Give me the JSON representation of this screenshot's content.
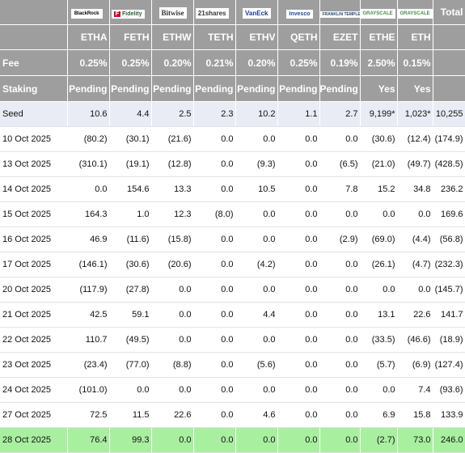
{
  "issuer_logos": [
    {
      "name": "blackrock-logo",
      "text": "BlackRock"
    },
    {
      "name": "fidelity-logo",
      "text": "Fidelity"
    },
    {
      "name": "bitwise-logo",
      "text": "Bitwise"
    },
    {
      "name": "21shares-logo",
      "text": "21shares"
    },
    {
      "name": "vaneck-logo",
      "text": "VanEck"
    },
    {
      "name": "invesco-logo",
      "text": "Invesco"
    },
    {
      "name": "franklin-logo",
      "text": "FRANKLIN TEMPLETON"
    },
    {
      "name": "grayscale-logo",
      "text": "GRAYSCALE"
    },
    {
      "name": "grayscale-logo-2",
      "text": "GRAYSCALE"
    }
  ],
  "total_label": "Total",
  "tickers": [
    "ETHA",
    "FETH",
    "ETHW",
    "TETH",
    "ETHV",
    "QETH",
    "EZET",
    "ETHE",
    "ETH"
  ],
  "fee_label": "Fee",
  "fees": [
    "0.25%",
    "0.25%",
    "0.20%",
    "0.21%",
    "0.20%",
    "0.25%",
    "0.19%",
    "2.50%",
    "0.15%"
  ],
  "staking_label": "Staking",
  "staking": [
    "Pending",
    "Pending",
    "Pending",
    "Pending",
    "Pending",
    "Pending",
    "Pending",
    "Yes",
    "Yes"
  ],
  "rows": [
    {
      "date": "Seed",
      "values": [
        "10.6",
        "4.4",
        "2.5",
        "2.3",
        "10.2",
        "1.1",
        "2.7",
        "9,199*",
        "1,023*",
        "10,255"
      ]
    },
    {
      "date": "10 Oct 2025",
      "values": [
        "(80.2)",
        "(30.1)",
        "(21.6)",
        "0.0",
        "0.0",
        "0.0",
        "0.0",
        "(30.6)",
        "(12.4)",
        "(174.9)"
      ]
    },
    {
      "date": "13 Oct 2025",
      "values": [
        "(310.1)",
        "(19.1)",
        "(12.8)",
        "0.0",
        "(9.3)",
        "0.0",
        "(6.5)",
        "(21.0)",
        "(49.7)",
        "(428.5)"
      ]
    },
    {
      "date": "14 Oct 2025",
      "values": [
        "0.0",
        "154.6",
        "13.3",
        "0.0",
        "10.5",
        "0.0",
        "7.8",
        "15.2",
        "34.8",
        "236.2"
      ]
    },
    {
      "date": "15 Oct 2025",
      "values": [
        "164.3",
        "1.0",
        "12.3",
        "(8.0)",
        "0.0",
        "0.0",
        "0.0",
        "0.0",
        "0.0",
        "169.6"
      ]
    },
    {
      "date": "16 Oct 2025",
      "values": [
        "46.9",
        "(11.6)",
        "(15.8)",
        "0.0",
        "0.0",
        "0.0",
        "(2.9)",
        "(69.0)",
        "(4.4)",
        "(56.8)"
      ]
    },
    {
      "date": "17 Oct 2025",
      "values": [
        "(146.1)",
        "(30.6)",
        "(20.6)",
        "0.0",
        "(4.2)",
        "0.0",
        "0.0",
        "(26.1)",
        "(4.7)",
        "(232.3)"
      ]
    },
    {
      "date": "20 Oct 2025",
      "values": [
        "(117.9)",
        "(27.8)",
        "0.0",
        "0.0",
        "0.0",
        "0.0",
        "0.0",
        "0.0",
        "0.0",
        "(145.7)"
      ]
    },
    {
      "date": "21 Oct 2025",
      "values": [
        "42.5",
        "59.1",
        "0.0",
        "0.0",
        "4.4",
        "0.0",
        "0.0",
        "13.1",
        "22.6",
        "141.7"
      ]
    },
    {
      "date": "22 Oct 2025",
      "values": [
        "110.7",
        "(49.5)",
        "0.0",
        "0.0",
        "0.0",
        "0.0",
        "0.0",
        "(33.5)",
        "(46.6)",
        "(18.9)"
      ]
    },
    {
      "date": "23 Oct 2025",
      "values": [
        "(23.4)",
        "(77.0)",
        "(8.8)",
        "0.0",
        "(5.6)",
        "0.0",
        "0.0",
        "(5.7)",
        "(6.9)",
        "(127.4)"
      ]
    },
    {
      "date": "24 Oct 2025",
      "values": [
        "(101.0)",
        "0.0",
        "0.0",
        "0.0",
        "0.0",
        "0.0",
        "0.0",
        "0.0",
        "7.4",
        "(93.6)"
      ]
    },
    {
      "date": "27 Oct 2025",
      "values": [
        "72.5",
        "11.5",
        "22.6",
        "0.0",
        "4.6",
        "0.0",
        "0.0",
        "6.9",
        "15.8",
        "133.9"
      ]
    },
    {
      "date": "28 Oct 2025",
      "values": [
        "76.4",
        "99.3",
        "0.0",
        "0.0",
        "0.0",
        "0.0",
        "0.0",
        "(2.7)",
        "73.0",
        "246.0"
      ]
    }
  ],
  "colors": {
    "header_bg": "#9e9e9e",
    "negative": "#c0151b",
    "seed_bg": "#e9ecf5",
    "last_row_bg": "#a8f0a0"
  }
}
